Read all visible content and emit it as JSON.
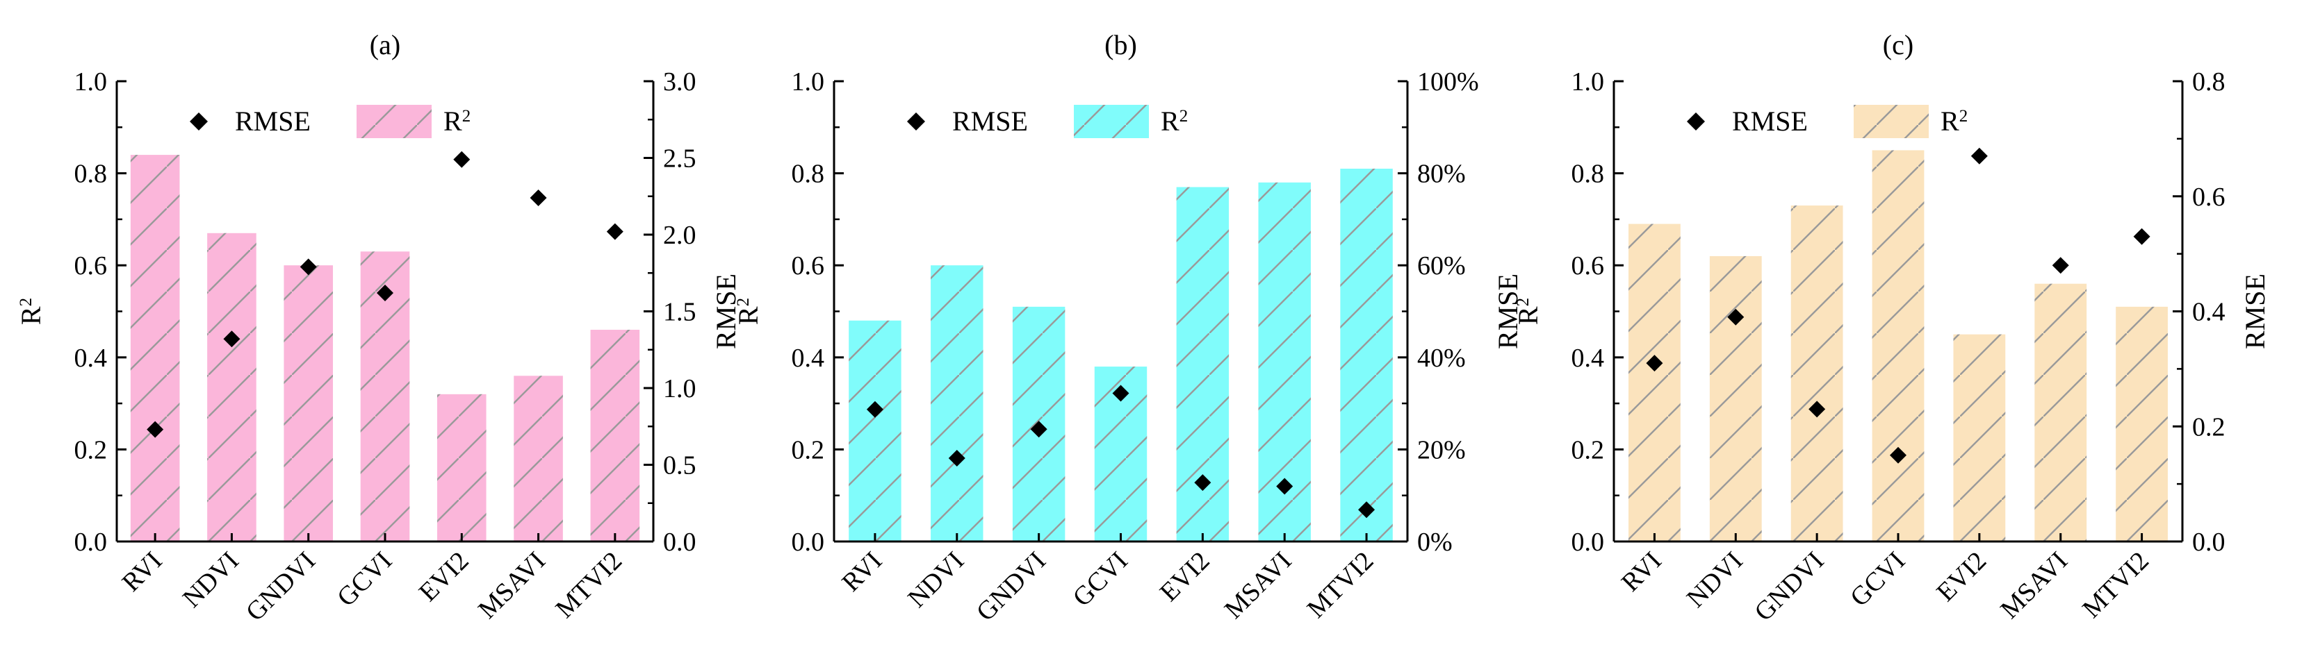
{
  "chart_data": [
    {
      "type": "bar",
      "title": "(a)",
      "categories": [
        "RVI",
        "NDVI",
        "GNDVI",
        "GCVI",
        "EVI2",
        "MSAVI",
        "MTVI2"
      ],
      "series": [
        {
          "name": "R²",
          "axis": "left",
          "kind": "bar",
          "values": [
            0.84,
            0.67,
            0.6,
            0.63,
            0.32,
            0.36,
            0.46
          ]
        },
        {
          "name": "RMSE",
          "axis": "right",
          "kind": "scatter",
          "marker": "diamond",
          "values": [
            0.73,
            1.32,
            1.79,
            1.62,
            2.49,
            2.24,
            2.02
          ]
        }
      ],
      "ylabel_left": "R²",
      "ylabel_right": "RMSE",
      "ylim_left": [
        0,
        1.0
      ],
      "ylim_right": [
        0,
        3.0
      ],
      "yticks_left": [
        "0.0",
        "0.2",
        "0.4",
        "0.6",
        "0.8",
        "1.0"
      ],
      "yticks_right": [
        "0.0",
        "0.5",
        "1.0",
        "1.5",
        "2.0",
        "2.5",
        "3.0"
      ],
      "bar_color": "#fbb6da",
      "legend": {
        "placement": "top",
        "entries": [
          "RMSE",
          "R²"
        ]
      }
    },
    {
      "type": "bar",
      "title": "(b)",
      "categories": [
        "RVI",
        "NDVI",
        "GNDVI",
        "GCVI",
        "EVI2",
        "MSAVI",
        "MTVI2"
      ],
      "series": [
        {
          "name": "R²",
          "axis": "left",
          "kind": "bar",
          "values": [
            0.48,
            0.6,
            0.51,
            0.38,
            0.77,
            0.78,
            0.81
          ]
        },
        {
          "name": "RMSE",
          "axis": "right",
          "kind": "scatter",
          "marker": "diamond",
          "values": [
            28.7,
            18.1,
            24.4,
            32.2,
            12.8,
            12.0,
            6.9
          ]
        }
      ],
      "ylabel_left": "R²",
      "ylabel_right": "RMSE",
      "ylim_left": [
        0,
        1.0
      ],
      "ylim_right": [
        0,
        100
      ],
      "yticks_left": [
        "0.0",
        "0.2",
        "0.4",
        "0.6",
        "0.8",
        "1.0"
      ],
      "yticks_right": [
        "0%",
        "20%",
        "40%",
        "60%",
        "80%",
        "100%"
      ],
      "bar_color": "#80fcfb",
      "legend": {
        "placement": "top",
        "entries": [
          "RMSE",
          "R²"
        ]
      }
    },
    {
      "type": "bar",
      "title": "(c)",
      "categories": [
        "RVI",
        "NDVI",
        "GNDVI",
        "GCVI",
        "EVI2",
        "MSAVI",
        "MTVI2"
      ],
      "series": [
        {
          "name": "R²",
          "axis": "left",
          "kind": "bar",
          "values": [
            0.69,
            0.62,
            0.73,
            0.85,
            0.45,
            0.56,
            0.51
          ]
        },
        {
          "name": "RMSE",
          "axis": "right",
          "kind": "scatter",
          "marker": "diamond",
          "values": [
            0.31,
            0.39,
            0.23,
            0.15,
            0.67,
            0.48,
            0.53
          ]
        }
      ],
      "ylabel_left": "R²",
      "ylabel_right": "RMSE",
      "ylim_left": [
        0,
        1.0
      ],
      "ylim_right": [
        0,
        0.8
      ],
      "yticks_left": [
        "0.0",
        "0.2",
        "0.4",
        "0.6",
        "0.8",
        "1.0"
      ],
      "yticks_right": [
        "0.0",
        "0.2",
        "0.4",
        "0.6",
        "0.8"
      ],
      "bar_color": "#fbe3bd",
      "legend": {
        "placement": "top",
        "entries": [
          "RMSE",
          "R²"
        ]
      }
    }
  ]
}
